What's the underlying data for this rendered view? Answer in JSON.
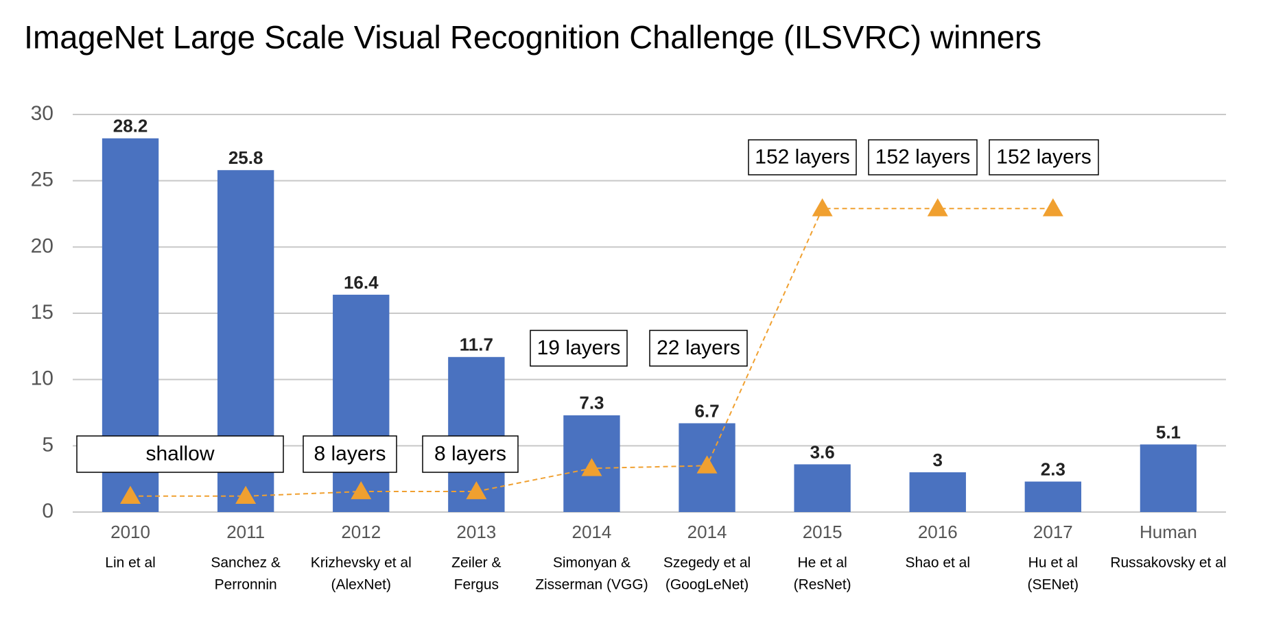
{
  "chart_data": {
    "type": "bar",
    "title": "ImageNet Large Scale Visual Recognition Challenge (ILSVRC) winners",
    "categories": [
      "2010",
      "2011",
      "2012",
      "2013",
      "2014",
      "2014",
      "2015",
      "2016",
      "2017",
      "Human"
    ],
    "category_notes": [
      [
        "Lin et al"
      ],
      [
        "Sanchez &",
        "Perronnin"
      ],
      [
        "Krizhevsky et al",
        "(AlexNet)"
      ],
      [
        "Zeiler &",
        "Fergus"
      ],
      [
        "Simonyan &",
        "Zisserman (VGG)"
      ],
      [
        "Szegedy et al",
        "(GoogLeNet)"
      ],
      [
        "He et al",
        "(ResNet)"
      ],
      [
        "Shao et al"
      ],
      [
        "Hu et al",
        "(SENet)"
      ],
      [
        "Russakovsky et al"
      ]
    ],
    "series": [
      {
        "type": "bar",
        "color": "#4a72c0",
        "values": [
          28.2,
          25.8,
          16.4,
          11.7,
          7.3,
          6.7,
          3.6,
          3,
          2.3,
          5.1
        ]
      },
      {
        "type": "line",
        "color": "#f0a030",
        "dashed": true,
        "marker": "triangle",
        "values": [
          1.2,
          1.2,
          1.55,
          1.55,
          3.3,
          3.5,
          22.9,
          22.9,
          22.9,
          null
        ]
      }
    ],
    "annotations": [
      "shallow",
      "8 layers",
      "8 layers",
      "19 layers",
      "22 layers",
      "152 layers",
      "152 layers",
      "152 layers"
    ],
    "ylim": [
      0,
      30
    ],
    "yticks": [
      0,
      5,
      10,
      15,
      20,
      25,
      30
    ],
    "grid": true
  }
}
